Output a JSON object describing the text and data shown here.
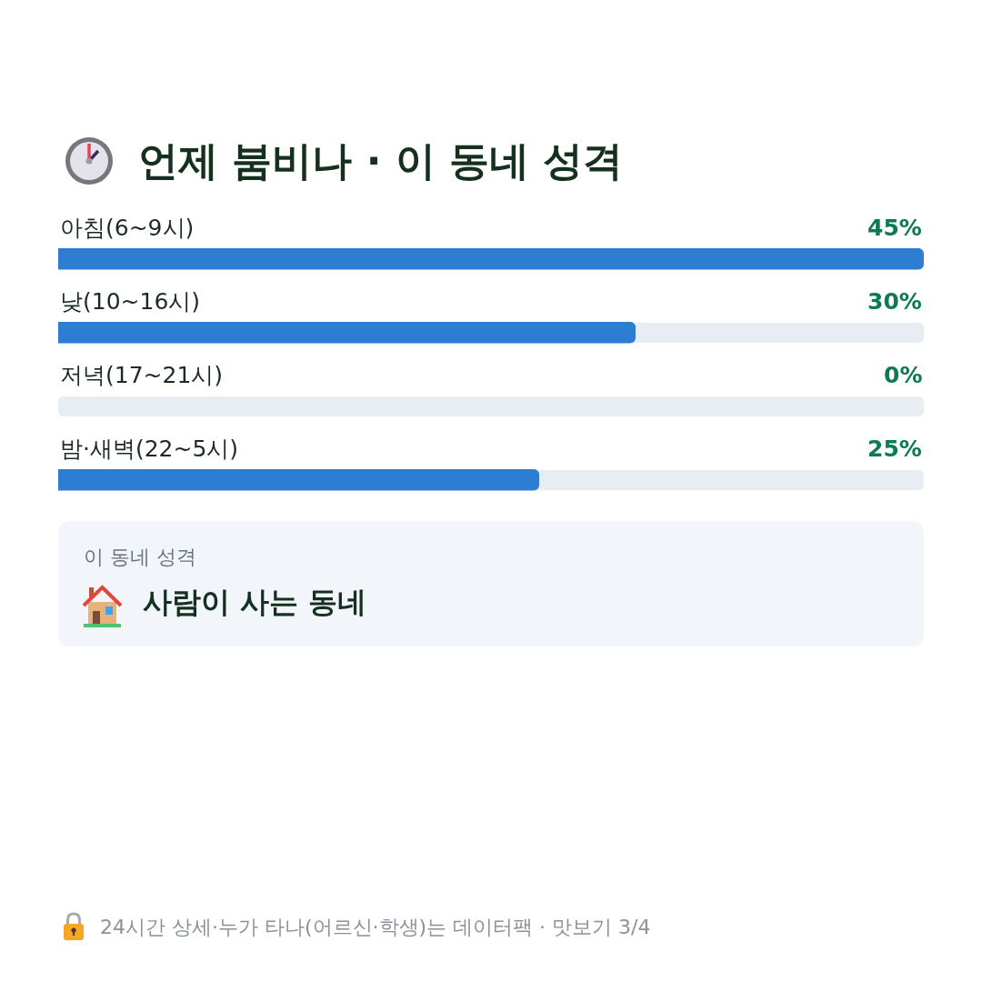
{
  "chart_data": {
    "type": "bar",
    "orientation": "horizontal",
    "title": "언제 붐비나 · 이 동네 성격",
    "categories": [
      "아침(6~9시)",
      "낮(10~16시)",
      "저녁(17~21시)",
      "밤·새벽(22~5시)"
    ],
    "values": [
      45,
      30,
      0,
      25
    ],
    "color": "#2d7dd2",
    "xlim": [
      0,
      45
    ],
    "value_labels": [
      "45%",
      "30%",
      "0%",
      "25%"
    ],
    "tick_labels": "y",
    "annotations": [
      "이 동네 성격",
      "사람이 사는 동네",
      "24시간 상세·누가 타나(어르신·학생)는 데이터팩 · 맛보기 3/4"
    ]
  }
}
